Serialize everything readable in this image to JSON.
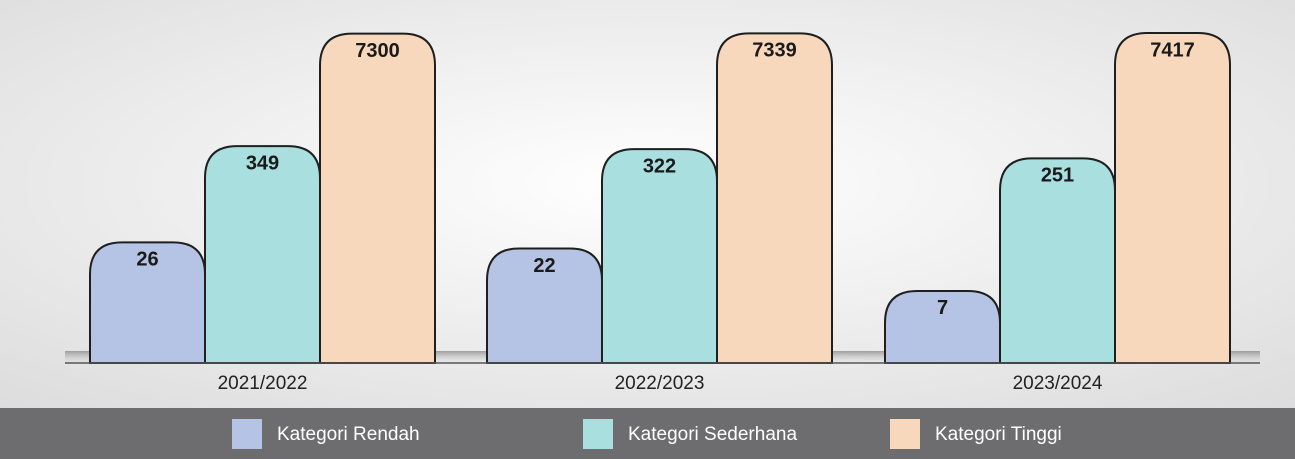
{
  "chart_data": {
    "type": "bar",
    "categories": [
      "2021/2022",
      "2022/2023",
      "2023/2024"
    ],
    "series": [
      {
        "name": "Kategori Rendah",
        "color": "#b5c4e4",
        "values": [
          26,
          22,
          7
        ]
      },
      {
        "name": "Kategori Sederhana",
        "color": "#a9dfdf",
        "values": [
          349,
          322,
          251
        ]
      },
      {
        "name": "Kategori Tinggi",
        "color": "#f7d8bc",
        "values": [
          7300,
          7339,
          7417
        ]
      }
    ],
    "log_scale": true,
    "legend": "bottom"
  }
}
